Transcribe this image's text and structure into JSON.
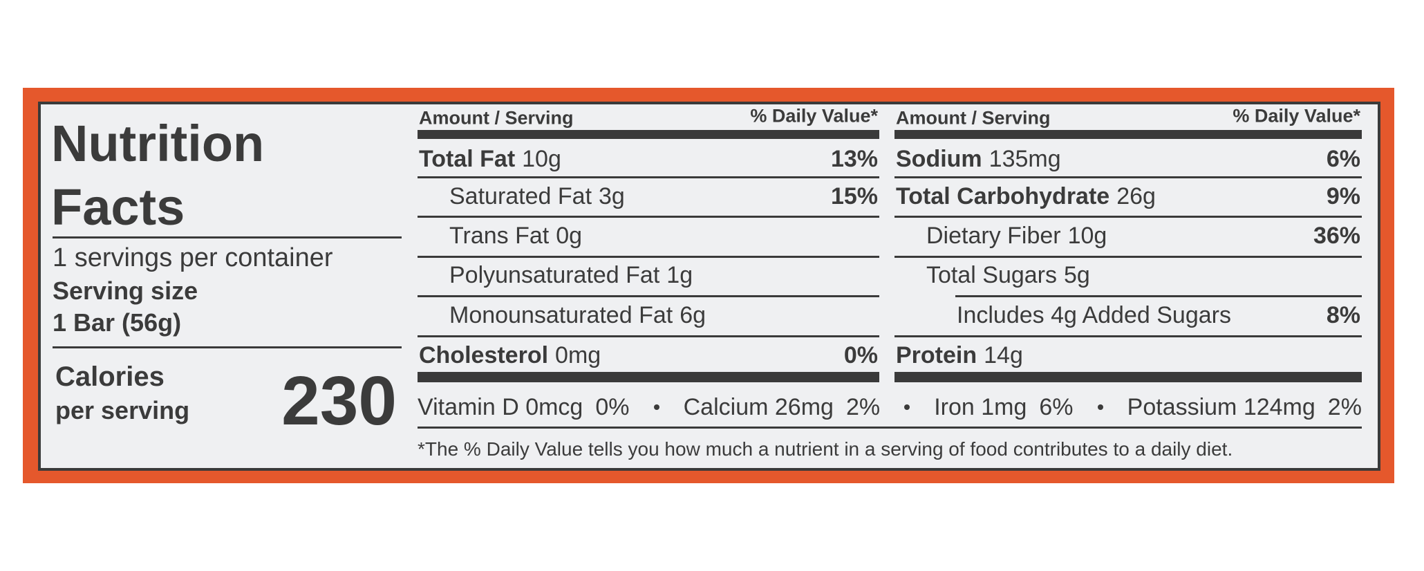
{
  "label": {
    "title": [
      "Nutrition",
      "Facts"
    ],
    "servings": "1 servings per container",
    "serving_size_label": "Serving size",
    "serving_size": "1 Bar (56g)",
    "calories_label": [
      "Calories",
      "per serving"
    ],
    "calories": "230",
    "columns": [
      {
        "amount_header": "Amount / Serving",
        "dv_header": "% Daily Value*",
        "rows": [
          {
            "name": "Total Fat",
            "amount": "10g",
            "dv": "13%",
            "sub": [
              {
                "name": "Saturated Fat",
                "amount": "3g",
                "dv": "15%"
              },
              {
                "name": "Trans Fat",
                "amount": "0g"
              },
              {
                "name": "Polyunsaturated Fat",
                "amount": "1g"
              },
              {
                "name": "Monounsaturated Fat",
                "amount": "6g"
              }
            ]
          },
          {
            "name": "Cholesterol",
            "amount": "0mg",
            "dv": "0%"
          }
        ]
      },
      {
        "amount_header": "Amount / Serving",
        "dv_header": "% Daily Value*",
        "rows": [
          {
            "name": "Sodium",
            "amount": "135mg",
            "dv": "6%"
          },
          {
            "name": "Total Carbohydrate",
            "amount": "26g",
            "dv": "9%",
            "sub": [
              {
                "name": "Dietary Fiber",
                "amount": "10g",
                "dv": "36%"
              },
              {
                "name": "Total Sugars",
                "amount": "5g",
                "sub": [
                  {
                    "name": "Includes 4g Added Sugars",
                    "dv": "8%"
                  }
                ]
              }
            ]
          },
          {
            "name": "Protein",
            "amount": "14g"
          }
        ]
      }
    ],
    "vitamins": [
      {
        "name": "Vitamin D 0mcg",
        "dv": "0%"
      },
      {
        "name": "Calcium 26mg",
        "dv": "2%"
      },
      {
        "name": "Iron 1mg",
        "dv": "6%"
      },
      {
        "name": "Potassium 124mg",
        "dv": "2%"
      }
    ],
    "footnote": "*The % Daily Value tells you how much a nutrient in a serving of food contributes to a daily diet."
  }
}
